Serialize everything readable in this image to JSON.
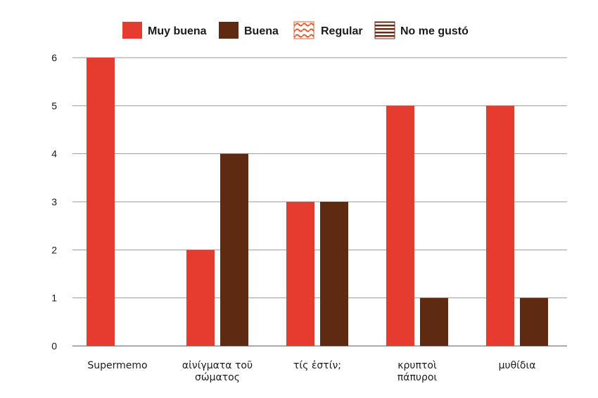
{
  "chart_data": {
    "type": "bar",
    "categories": [
      [
        "Supermemo"
      ],
      [
        "αἰνίγματα τοῦ",
        "σώματος"
      ],
      [
        "τίς ἐστίν;"
      ],
      [
        "κρυπτοὶ",
        "πάπυροι"
      ],
      [
        "μυθίδια"
      ]
    ],
    "series": [
      {
        "name": "Muy buena",
        "values": [
          6,
          2,
          3,
          5,
          5
        ],
        "color": "#e63c2f",
        "pattern": "solid"
      },
      {
        "name": "Buena",
        "values": [
          0,
          4,
          3,
          1,
          1
        ],
        "color": "#5e2a12",
        "pattern": "solid"
      },
      {
        "name": "Regular",
        "values": [
          0,
          0,
          0,
          0,
          0
        ],
        "color": "#e8582a",
        "pattern": "waves"
      },
      {
        "name": "No me gustó",
        "values": [
          0,
          0,
          0,
          0,
          0
        ],
        "color": "#6b2a14",
        "pattern": "stripes"
      }
    ],
    "yticks": [
      0,
      1,
      2,
      3,
      4,
      5,
      6
    ],
    "ylim": [
      0,
      6
    ],
    "grid": true,
    "legend_position": "top-center",
    "title": "",
    "xlabel": "",
    "ylabel": ""
  }
}
